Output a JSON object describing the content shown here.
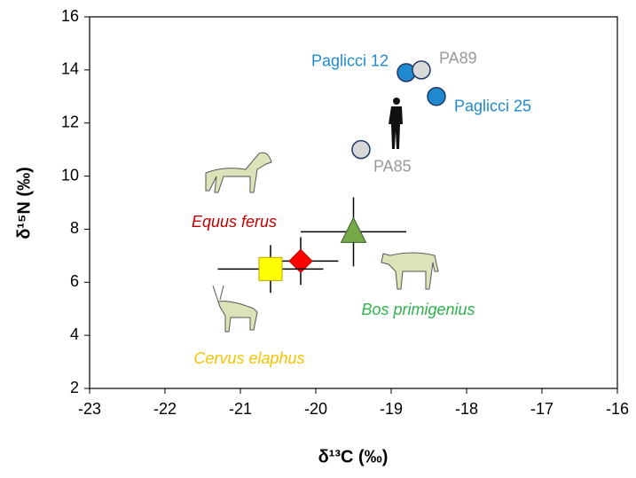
{
  "chart_data": {
    "type": "scatter",
    "x_label": "δ¹³C (‰)",
    "y_label": "δ¹⁵N (‰)",
    "xlim": [
      -23,
      -16
    ],
    "xticks": [
      -23,
      -22,
      -21,
      -20,
      -19,
      -18,
      -17,
      -16
    ],
    "ylim": [
      2,
      16
    ],
    "yticks": [
      2,
      4,
      6,
      8,
      10,
      12,
      14,
      16
    ],
    "series": [
      {
        "name": "Paglicci 12",
        "color": "#1f8ad0",
        "marker": "circle",
        "x": [
          -18.8
        ],
        "values": [
          13.9
        ]
      },
      {
        "name": "PA89",
        "color": "#d9d9d9",
        "label_color": "#999999",
        "marker": "circle",
        "x": [
          -18.6
        ],
        "values": [
          14.0
        ]
      },
      {
        "name": "Paglicci 25",
        "color": "#1f8ad0",
        "marker": "circle",
        "x": [
          -18.4
        ],
        "values": [
          13.0
        ]
      },
      {
        "name": "PA85",
        "color": "#d9d9d9",
        "label_color": "#999999",
        "marker": "circle",
        "x": [
          -19.4
        ],
        "values": [
          11.0
        ]
      },
      {
        "name": "Equus ferus",
        "color": "#ff0000",
        "label_color": "#c00000",
        "marker": "diamond",
        "x": [
          -20.2
        ],
        "values": [
          6.8
        ],
        "xerr": [
          0.5
        ],
        "yerr": [
          0.9
        ]
      },
      {
        "name": "Bos primigenius",
        "color": "#77a94a",
        "label_color": "#2db34a",
        "marker": "triangle",
        "x": [
          -19.5
        ],
        "values": [
          7.9
        ],
        "xerr": [
          0.7
        ],
        "yerr": [
          1.3
        ]
      },
      {
        "name": "Cervus elaphus",
        "color": "#ffff00",
        "label_color": "#f5c400",
        "marker": "square",
        "x": [
          -20.6
        ],
        "values": [
          6.5
        ],
        "xerr": [
          0.7
        ],
        "yerr": [
          0.9
        ]
      }
    ]
  }
}
